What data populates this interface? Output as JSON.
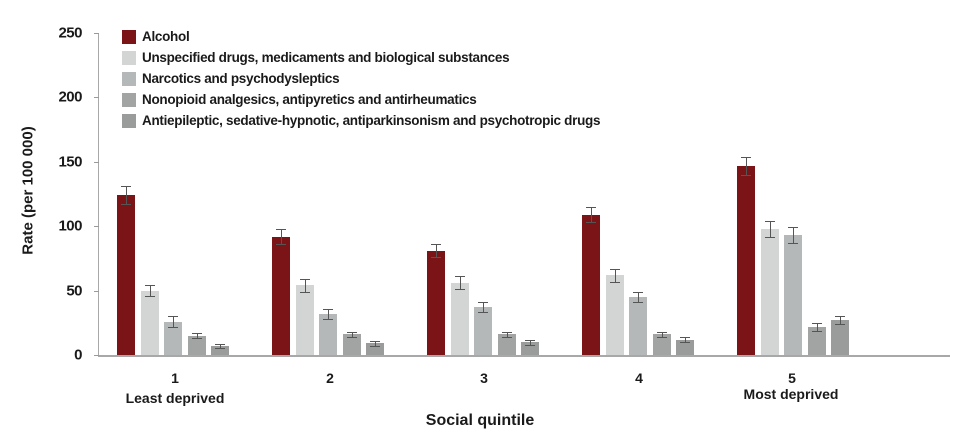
{
  "chart_data": {
    "type": "bar",
    "title": "",
    "xlabel": "Social quintile",
    "ylabel": "Rate (per 100 000)",
    "ylim": [
      0,
      250
    ],
    "yticks": [
      0,
      50,
      100,
      150,
      200,
      250
    ],
    "grid": false,
    "legend_position": "top-left inside",
    "categories": [
      "1",
      "2",
      "3",
      "4",
      "5"
    ],
    "category_sublabels": [
      "Least deprived",
      "",
      "",
      "",
      "Most deprived"
    ],
    "series": [
      {
        "name": "Alcohol",
        "color": "#7a1416",
        "values": [
          124,
          92,
          81,
          109,
          147
        ],
        "error": [
          7,
          6,
          5,
          6,
          7
        ]
      },
      {
        "name": "Unspecified drugs, medicaments and biological substances",
        "color": "#d3d5d5",
        "values": [
          50,
          54,
          56,
          62,
          98
        ],
        "error": [
          4,
          5,
          5,
          5,
          6
        ]
      },
      {
        "name": "Narcotics and psychodysleptics",
        "color": "#b5b8b8",
        "values": [
          26,
          32,
          37,
          45,
          93
        ],
        "error": [
          4,
          4,
          4,
          4,
          6
        ]
      },
      {
        "name": "Nonopioid analgesics, antipyretics and antirheumatics",
        "color": "#a2a4a4",
        "values": [
          15,
          16,
          16,
          16,
          22
        ],
        "error": [
          2,
          2,
          2,
          2,
          3
        ]
      },
      {
        "name": "Antiepileptic, sedative-hypnotic, antiparkinsonism and psychotropic drugs",
        "color": "#9a9c9c",
        "values": [
          7,
          9,
          10,
          12,
          27
        ],
        "error": [
          1.5,
          2,
          2,
          2,
          3
        ]
      }
    ]
  },
  "legend": {
    "items": [
      "Alcohol",
      "Unspecified drugs, medicaments and biological substances",
      "Narcotics and psychodysleptics",
      "Nonopioid analgesics, antipyretics and antirheumatics",
      "Antiepileptic, sedative-hypnotic, antiparkinsonism and psychotropic drugs"
    ]
  },
  "axes": {
    "ylabel": "Rate (per 100 000)",
    "xlabel": "Social quintile",
    "yticks": [
      "0",
      "50",
      "100",
      "150",
      "200",
      "250"
    ],
    "xticks": [
      "1",
      "2",
      "3",
      "4",
      "5"
    ],
    "least_label": "Least deprived",
    "most_label": "Most deprived"
  }
}
